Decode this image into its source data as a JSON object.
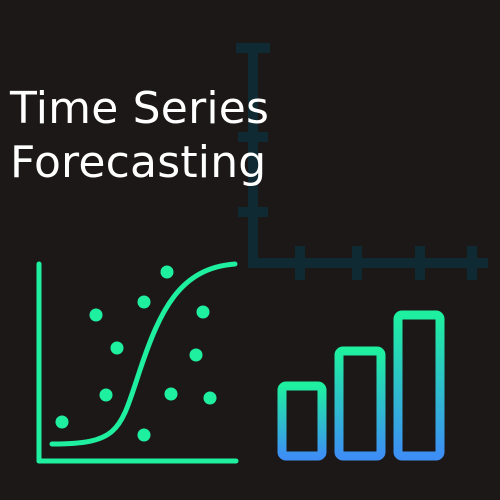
{
  "title": {
    "line1": "Time Series",
    "line2": "Forecasting"
  },
  "colors": {
    "background": "#1d1818",
    "title_text": "#ffffff",
    "accent_green": "#1ef0a0",
    "accent_blue": "#3d8ff5",
    "faint_axes": "#0f2a33"
  },
  "icons": {
    "faint_axes": "axes-tick-icon",
    "scatter": "scatter-sigmoid-icon",
    "bars": "bar-chart-icon"
  }
}
